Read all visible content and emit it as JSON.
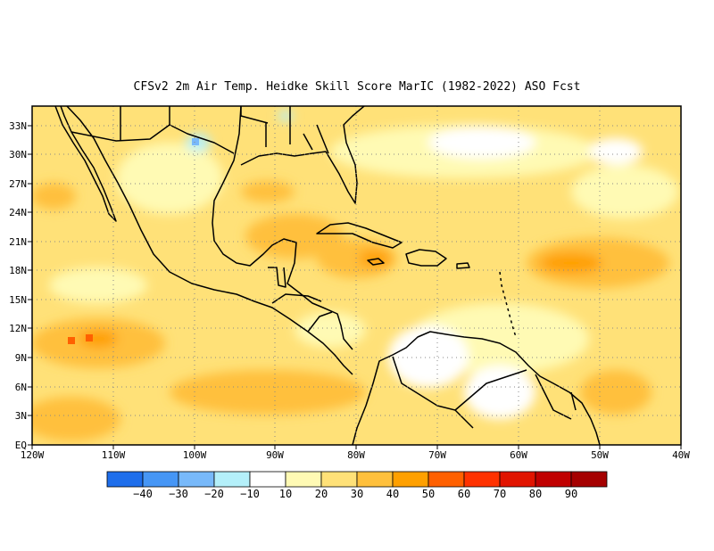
{
  "title": "CFSv2  2m Air Temp. Heidke Skill Score MarIC (1982-2022) ASO Fcst",
  "map": {
    "lon_range": [
      -120,
      -40
    ],
    "lat_range": [
      0,
      35
    ],
    "x_ticks": [
      "120W",
      "110W",
      "100W",
      "90W",
      "80W",
      "70W",
      "60W",
      "50W",
      "40W"
    ],
    "y_ticks": [
      "EQ",
      "3N",
      "6N",
      "9N",
      "12N",
      "15N",
      "18N",
      "21N",
      "24N",
      "27N",
      "30N",
      "33N"
    ],
    "grid": "dotted"
  },
  "colorbar": {
    "colors": [
      "#1e6eeb",
      "#4696f5",
      "#78b9fa",
      "#b4f0fa",
      "#ffffff",
      "#fffab4",
      "#ffe178",
      "#ffc03c",
      "#ffa000",
      "#ff6000",
      "#ff3200",
      "#e11400",
      "#c00000",
      "#a50000"
    ],
    "labels": [
      "−40",
      "−30",
      "−20",
      "−10",
      "10",
      "20",
      "30",
      "40",
      "50",
      "60",
      "70",
      "80",
      "90"
    ]
  }
}
